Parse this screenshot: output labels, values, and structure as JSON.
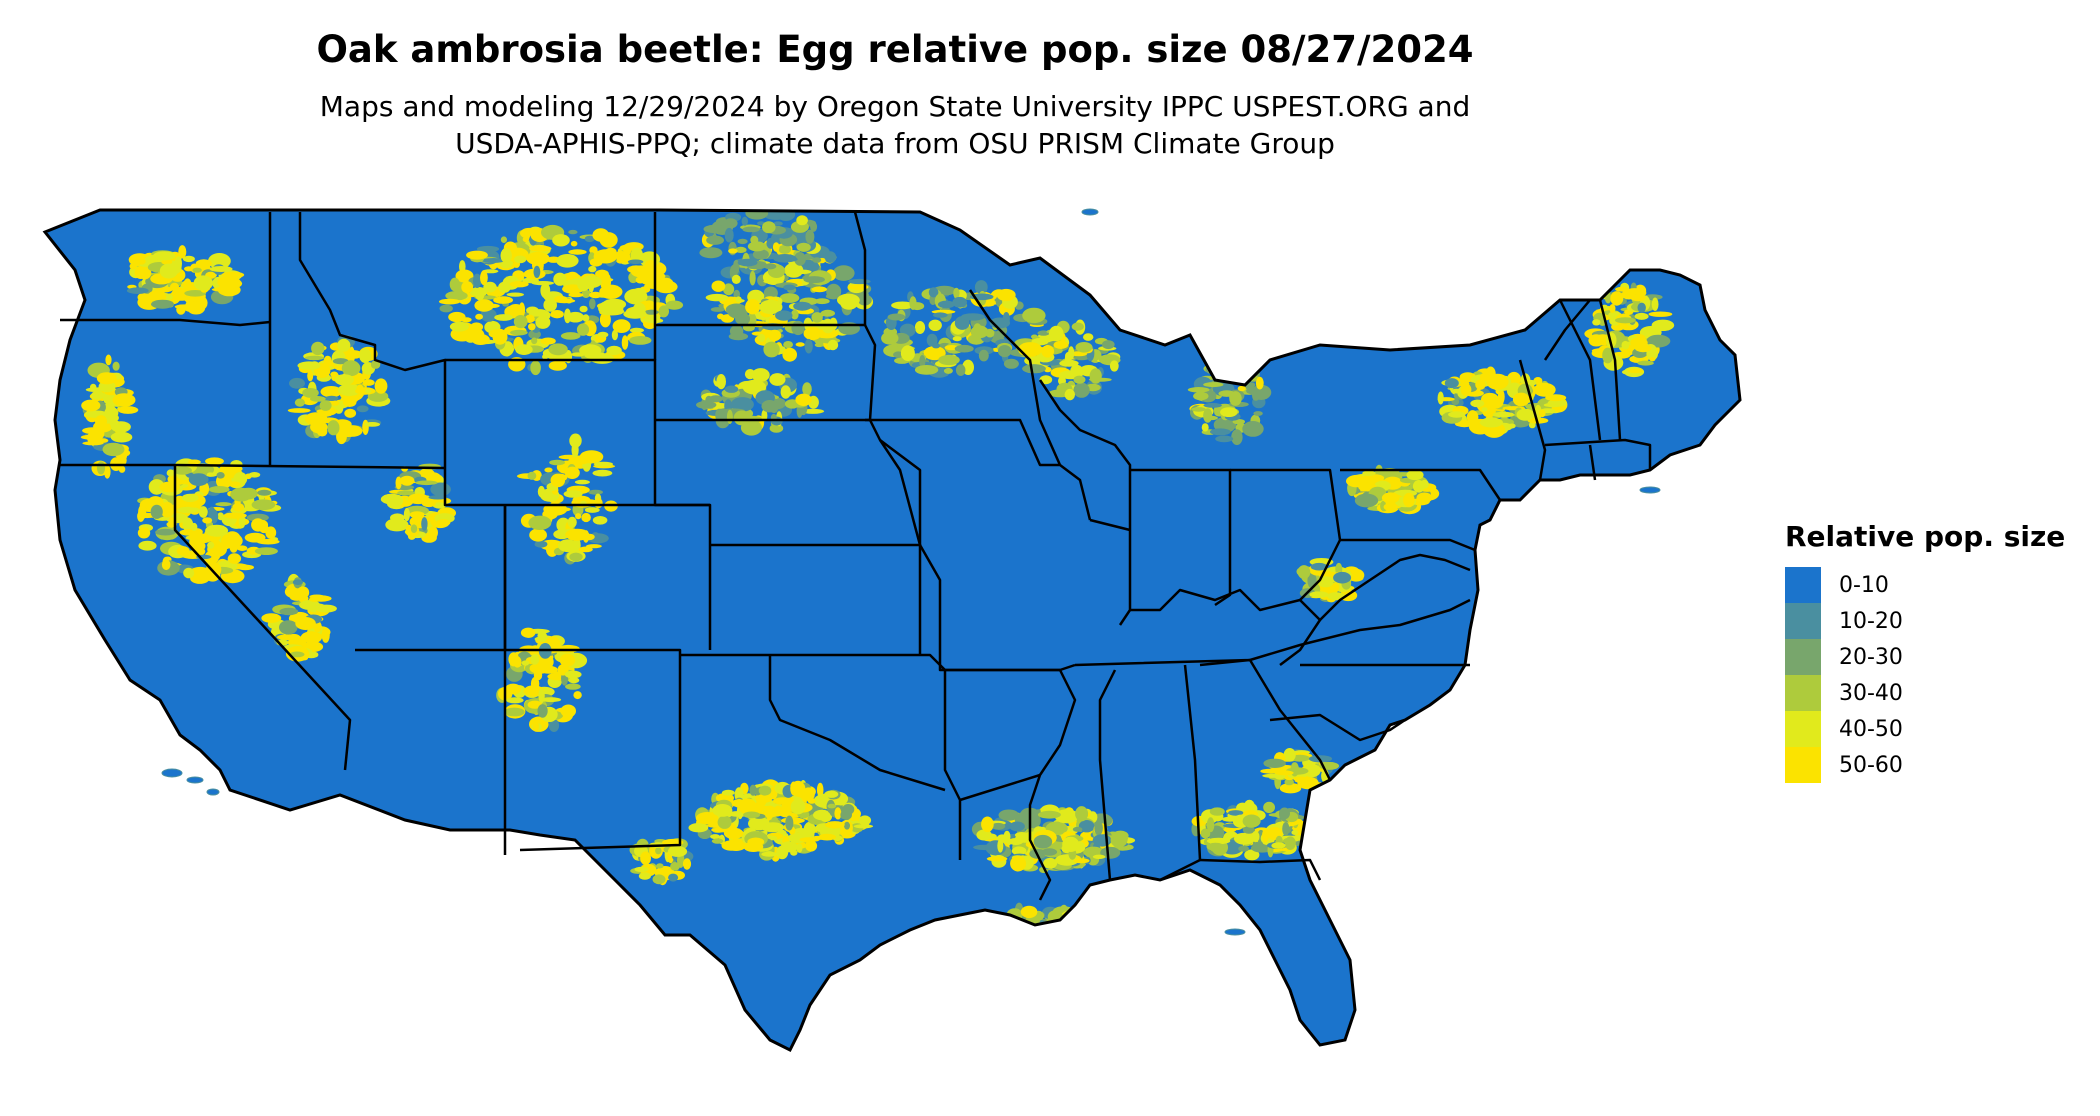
{
  "title": "Oak ambrosia beetle: Egg relative pop. size 08/27/2024",
  "subtitle_line1": "Maps and modeling 12/29/2024 by Oregon State University IPPC USPEST.ORG and",
  "subtitle_line2": "USDA-APHIS-PPQ; climate data from OSU PRISM Climate Group",
  "legend": {
    "title": "Relative pop. size",
    "items": [
      {
        "label": "0-10",
        "color": "#1b74cc"
      },
      {
        "label": "10-20",
        "color": "#4a8fa0"
      },
      {
        "label": "20-30",
        "color": "#78a66c"
      },
      {
        "label": "30-40",
        "color": "#aecb3c"
      },
      {
        "label": "40-50",
        "color": "#e1ea1c"
      },
      {
        "label": "50-60",
        "color": "#fbe300"
      }
    ]
  },
  "colors": {
    "base": "#1b74cc",
    "state_border": "#000000",
    "background": "#ffffff"
  }
}
